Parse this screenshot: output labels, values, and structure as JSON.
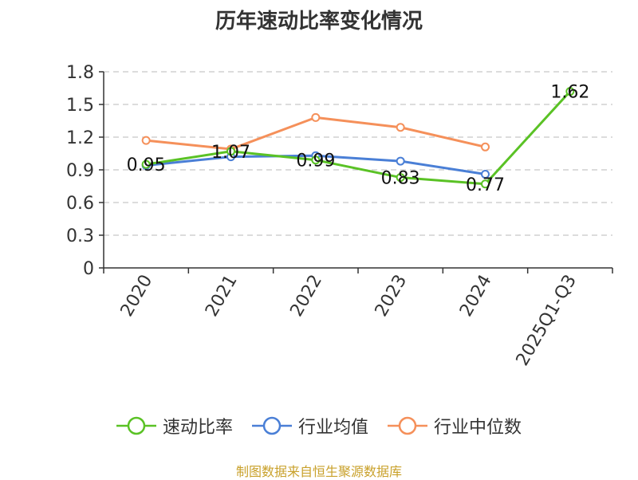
{
  "source_note": "制图数据来自恒生聚源数据库",
  "chart_data": {
    "type": "line",
    "title": "历年速动比率变化情况",
    "xlabel": "",
    "ylabel": "",
    "categories": [
      "2020",
      "2021",
      "2022",
      "2023",
      "2024",
      "2025Q1-Q3"
    ],
    "ylim": [
      0,
      1.8
    ],
    "yticks": [
      "0",
      "0.3",
      "0.6",
      "0.9",
      "1.2",
      "1.5",
      "1.8"
    ],
    "grid": true,
    "legend_position": "bottom",
    "series": [
      {
        "name": "速动比率",
        "color": "#5ac225",
        "values": [
          0.95,
          1.07,
          0.99,
          0.83,
          0.77,
          1.62
        ],
        "labels": [
          "0.95",
          "1.07",
          "0.99",
          "0.83",
          "0.77",
          "1.62"
        ]
      },
      {
        "name": "行业均值",
        "color": "#4a7fd6",
        "values": [
          0.94,
          1.02,
          1.03,
          0.98,
          0.86,
          null
        ]
      },
      {
        "name": "行业中位数",
        "color": "#f5905a",
        "values": [
          1.17,
          1.09,
          1.38,
          1.29,
          1.11,
          null
        ]
      }
    ]
  }
}
